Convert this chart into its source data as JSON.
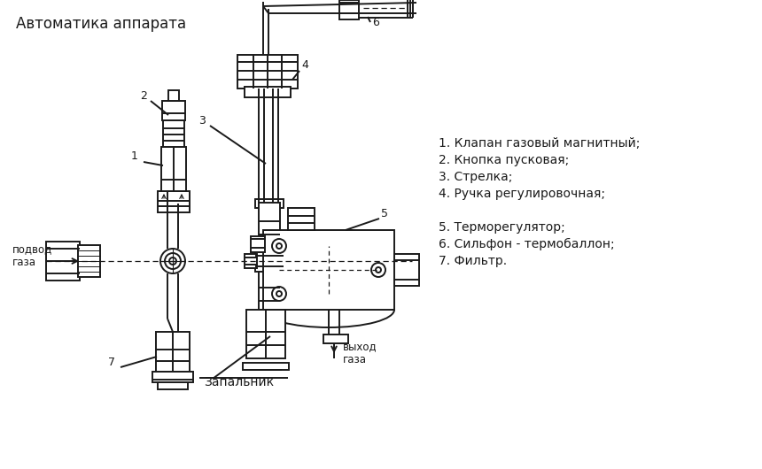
{
  "title": "Автоматика аппарата",
  "bg_color": "#ffffff",
  "line_color": "#1a1a1a",
  "legend_lines": [
    "1. Клапан газовый магнитный;",
    "2. Кнопка пусковая;",
    "3. Стрелка;",
    "4. Ручка регулировочная;",
    "",
    "5. Терморегулятор;",
    "6. Сильфон - термобаллон;",
    "7. Фильтр."
  ],
  "gas_in_1": "подвод",
  "gas_in_2": "газа",
  "gas_out_1": "выход",
  "gas_out_2": "газа",
  "zapalhik": "Запальник",
  "lw": 1.4
}
